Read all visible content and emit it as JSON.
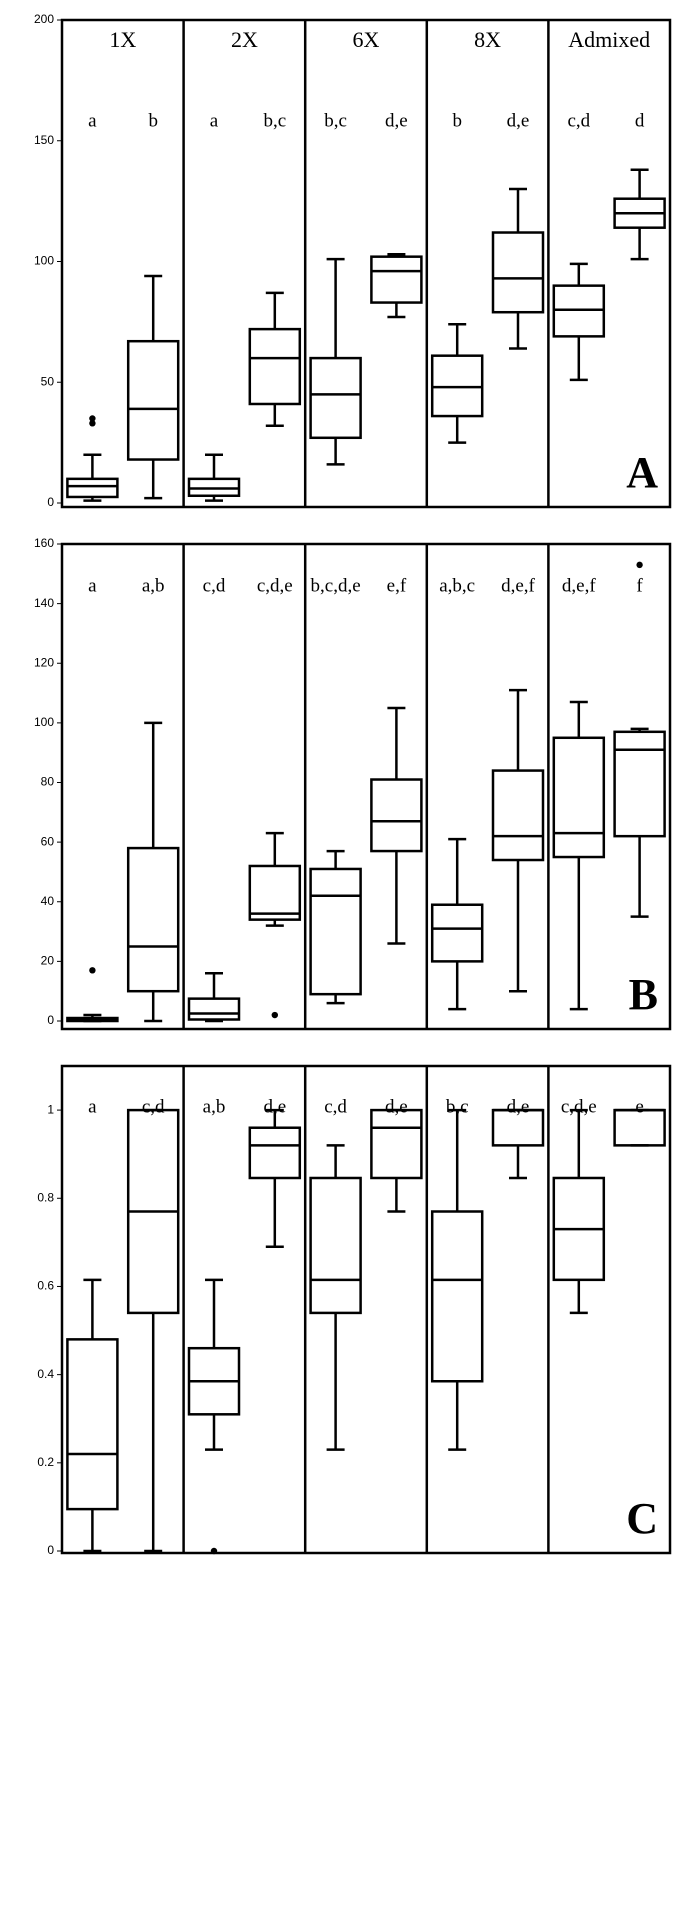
{
  "chart_data": [
    {
      "type": "box",
      "panel_label": "A",
      "ylim": [
        0,
        200
      ],
      "yticks": [
        0,
        50,
        100,
        150,
        200
      ],
      "groups": [
        "1X",
        "2X",
        "6X",
        "8X",
        "Admixed"
      ],
      "boxes": [
        {
          "letter": "a",
          "min": 1,
          "q1": 2.5,
          "median": 7,
          "q3": 10,
          "max": 20,
          "outliers": [
            35,
            33
          ]
        },
        {
          "letter": "b",
          "min": 2,
          "q1": 18,
          "median": 39,
          "q3": 67,
          "max": 94,
          "outliers": []
        },
        {
          "letter": "a",
          "min": 1,
          "q1": 3,
          "median": 6,
          "q3": 10,
          "max": 20,
          "outliers": []
        },
        {
          "letter": "b,c",
          "min": 32,
          "q1": 41,
          "median": 60,
          "q3": 72,
          "max": 87,
          "outliers": []
        },
        {
          "letter": "b,c",
          "min": 16,
          "q1": 27,
          "median": 45,
          "q3": 60,
          "max": 101,
          "outliers": []
        },
        {
          "letter": "d,e",
          "min": 77,
          "q1": 83,
          "median": 96,
          "q3": 102,
          "max": 103,
          "outliers": []
        },
        {
          "letter": "b",
          "min": 25,
          "q1": 36,
          "median": 48,
          "q3": 61,
          "max": 74,
          "outliers": []
        },
        {
          "letter": "d,e",
          "min": 64,
          "q1": 79,
          "median": 93,
          "q3": 112,
          "max": 130,
          "outliers": []
        },
        {
          "letter": "c,d",
          "min": 51,
          "q1": 69,
          "median": 80,
          "q3": 90,
          "max": 99,
          "outliers": []
        },
        {
          "letter": "d",
          "min": 101,
          "q1": 114,
          "median": 120,
          "q3": 126,
          "max": 138,
          "outliers": []
        }
      ]
    },
    {
      "type": "box",
      "panel_label": "B",
      "ylim": [
        0,
        160
      ],
      "yticks": [
        0,
        20,
        40,
        60,
        80,
        100,
        120,
        140,
        160
      ],
      "boxes": [
        {
          "letter": "a",
          "min": 0,
          "q1": 0,
          "median": 0.5,
          "q3": 1,
          "max": 2,
          "outliers": [
            17
          ]
        },
        {
          "letter": "a,b",
          "min": 0,
          "q1": 10,
          "median": 25,
          "q3": 58,
          "max": 100,
          "outliers": []
        },
        {
          "letter": "c,d",
          "min": 0,
          "q1": 0.5,
          "median": 2.5,
          "q3": 7.5,
          "max": 16,
          "outliers": []
        },
        {
          "letter": "c,d,e",
          "min": 32,
          "q1": 34,
          "median": 36,
          "q3": 52,
          "max": 63,
          "outliers": [
            2
          ]
        },
        {
          "letter": "b,c,d,e",
          "min": 6,
          "q1": 9,
          "median": 42,
          "q3": 51,
          "max": 57,
          "outliers": []
        },
        {
          "letter": "e,f",
          "min": 26,
          "q1": 57,
          "median": 67,
          "q3": 81,
          "max": 105,
          "outliers": []
        },
        {
          "letter": "a,b,c",
          "min": 4,
          "q1": 20,
          "median": 31,
          "q3": 39,
          "max": 61,
          "outliers": []
        },
        {
          "letter": "d,e,f",
          "min": 10,
          "q1": 54,
          "median": 62,
          "q3": 84,
          "max": 111,
          "outliers": []
        },
        {
          "letter": "d,e,f",
          "min": 4,
          "q1": 55,
          "median": 63,
          "q3": 95,
          "max": 107,
          "outliers": []
        },
        {
          "letter": "f",
          "min": 35,
          "q1": 62,
          "median": 91,
          "q3": 97,
          "max": 98,
          "outliers": [
            153
          ]
        }
      ]
    },
    {
      "type": "box",
      "panel_label": "C",
      "ylim": [
        0,
        1.1
      ],
      "yticks": [
        0,
        0.2,
        0.4,
        0.6,
        0.8,
        1
      ],
      "boxes": [
        {
          "letter": "a",
          "min": 0,
          "q1": 0.095,
          "median": 0.22,
          "q3": 0.48,
          "max": 0.615,
          "outliers": []
        },
        {
          "letter": "c,d",
          "min": 0,
          "q1": 0.54,
          "median": 0.77,
          "q3": 1,
          "max": 1,
          "outliers": []
        },
        {
          "letter": "a,b",
          "min": 0.23,
          "q1": 0.31,
          "median": 0.385,
          "q3": 0.46,
          "max": 0.615,
          "outliers": [
            0
          ]
        },
        {
          "letter": "d,e",
          "min": 0.69,
          "q1": 0.846,
          "median": 0.92,
          "q3": 0.96,
          "max": 1,
          "outliers": []
        },
        {
          "letter": "c,d",
          "min": 0.23,
          "q1": 0.54,
          "median": 0.615,
          "q3": 0.846,
          "max": 0.92,
          "outliers": []
        },
        {
          "letter": "d,e",
          "min": 0.77,
          "q1": 0.846,
          "median": 0.96,
          "q3": 1,
          "max": 1,
          "outliers": []
        },
        {
          "letter": "b,c",
          "min": 0.23,
          "q1": 0.385,
          "median": 0.615,
          "q3": 0.77,
          "max": 1,
          "outliers": []
        },
        {
          "letter": "d,e",
          "min": 0.846,
          "q1": 0.92,
          "median": 1,
          "q3": 1,
          "max": 1,
          "outliers": []
        },
        {
          "letter": "c,d,e",
          "min": 0.54,
          "q1": 0.615,
          "median": 0.73,
          "q3": 0.846,
          "max": 1,
          "outliers": []
        },
        {
          "letter": "e",
          "min": 0.92,
          "q1": 0.92,
          "median": 1,
          "q3": 1,
          "max": 1,
          "outliers": []
        }
      ]
    }
  ]
}
